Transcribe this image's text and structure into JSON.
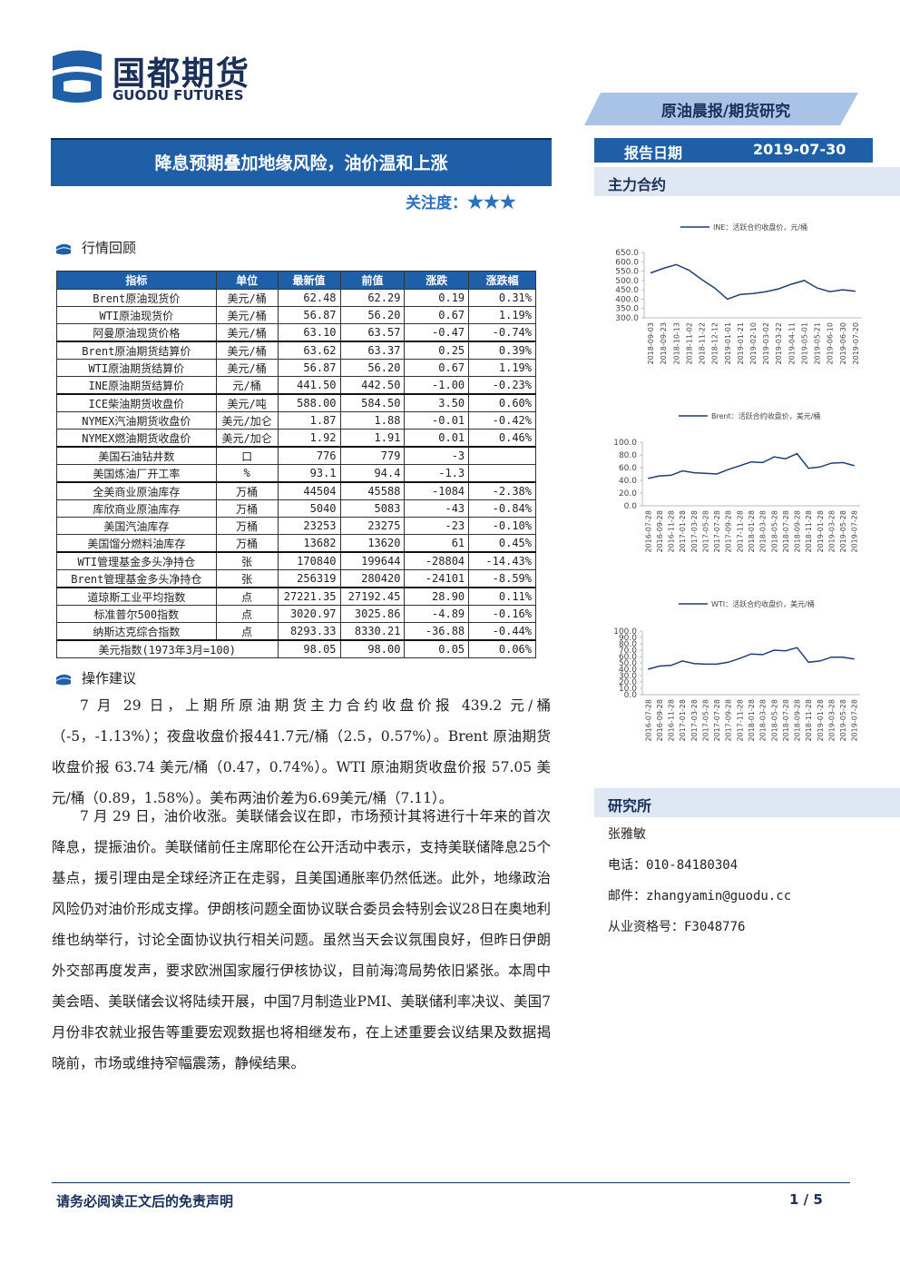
{
  "header": {
    "logo_name": "国都期货",
    "logo_en": "GUODU FUTURES",
    "report_type": "原油晨报/期货研究",
    "date_label": "报告日期",
    "date": "2019-07-30"
  },
  "title": "降息预期叠加地缘风险，油价温和上涨",
  "attention": {
    "label": "关注度：",
    "stars": "★★★"
  },
  "market_review": {
    "heading": "行情回顾"
  },
  "table": {
    "columns": [
      "指标",
      "单位",
      "最新值",
      "前值",
      "涨跌",
      "涨跌幅"
    ],
    "groups": [
      [
        [
          "Brent原油现货价",
          "美元/桶",
          "62.48",
          "62.29",
          "0.19",
          "0.31%"
        ],
        [
          "WTI原油现货价",
          "美元/桶",
          "56.87",
          "56.20",
          "0.67",
          "1.19%"
        ],
        [
          "阿曼原油现货价格",
          "美元/桶",
          "63.10",
          "63.57",
          "-0.47",
          "-0.74%"
        ]
      ],
      [
        [
          "Brent原油期货结算价",
          "美元/桶",
          "63.62",
          "63.37",
          "0.25",
          "0.39%"
        ],
        [
          "WTI原油期货结算价",
          "美元/桶",
          "56.87",
          "56.20",
          "0.67",
          "1.19%"
        ],
        [
          "INE原油期货结算价",
          "元/桶",
          "441.50",
          "442.50",
          "-1.00",
          "-0.23%"
        ]
      ],
      [
        [
          "ICE柴油期货收盘价",
          "美元/吨",
          "588.00",
          "584.50",
          "3.50",
          "0.60%"
        ],
        [
          "NYMEX汽油期货收盘价",
          "美元/加仑",
          "1.87",
          "1.88",
          "-0.01",
          "-0.42%"
        ],
        [
          "NYMEX燃油期货收盘价",
          "美元/加仑",
          "1.92",
          "1.91",
          "0.01",
          "0.46%"
        ]
      ],
      [
        [
          "美国石油钻井数",
          "口",
          "776",
          "779",
          "-3"
        ],
        [
          "美国炼油厂开工率",
          "%",
          "93.1",
          "94.4",
          "-1.3"
        ]
      ],
      [
        [
          "全美商业原油库存",
          "万桶",
          "44504",
          "45588",
          "-1084",
          "-2.38%"
        ],
        [
          "库欣商业原油库存",
          "万桶",
          "5040",
          "5083",
          "-43",
          "-0.84%"
        ],
        [
          "美国汽油库存",
          "万桶",
          "23253",
          "23275",
          "-23",
          "-0.10%"
        ],
        [
          "美国馏分燃料油库存",
          "万桶",
          "13682",
          "13620",
          "61",
          "0.45%"
        ]
      ],
      [
        [
          "WTI管理基金多头净持仓",
          "张",
          "170840",
          "199644",
          "-28804",
          "-14.43%"
        ],
        [
          "Brent管理基金多头净持仓",
          "张",
          "256319",
          "280420",
          "-24101",
          "-8.59%"
        ]
      ],
      [
        [
          "道琼斯工业平均指数",
          "点",
          "27221.35",
          "27192.45",
          "28.90",
          "0.11%"
        ],
        [
          "标准普尔500指数",
          "点",
          "3020.97",
          "3025.86",
          "-4.89",
          "-0.16%"
        ],
        [
          "纳斯达克综合指数",
          "点",
          "8293.33",
          "8330.21",
          "-36.88",
          "-0.44%"
        ]
      ]
    ],
    "footer_row": [
      "美元指数(1973年3月=100)",
      "98.05",
      "98.00",
      "0.05",
      "0.06%"
    ]
  },
  "advice": {
    "heading": "操作建议",
    "paragraphs": [
      "7 月 29 日，上期所原油期货主力合约收盘价报 439.2 元/桶（-5，-1.13%）；夜盘收盘价报441.7元/桶（2.5，0.57%）。Brent 原油期货收盘价报 63.74 美元/桶（0.47，0.74%）。WTI 原油期货收盘价报 57.05 美元/桶（0.89，1.58%）。美布两油价差为6.69美元/桶（7.11）。",
      "7 月 29 日，油价收涨。美联储会议在即，市场预计其将进行十年来的首次降息，提振油价。美联储前任主席耶伦在公开活动中表示，支持美联储降息25个基点，援引理由是全球经济正在走弱，且美国通胀率仍然低迷。此外，地缘政治风险仍对油价形成支撑。伊朗核问题全面协议联合委员会特别会议28日在奥地利维也纳举行，讨论全面协议执行相关问题。虽然当天会议氛围良好，但昨日伊朗外交部再度发声，要求欧洲国家履行伊核协议，目前海湾局势依旧紧张。本周中美会晤、美联储会议将陆续开展，中国7月制造业PMI、美联储利率决议、美国7月份非农就业报告等重要宏观数据也将相继发布，在上述重要会议结果及数据揭晓前，市场或维持窄幅震荡，静候结果。"
    ]
  },
  "main_contract": {
    "heading": "主力合约",
    "charts": [
      {
        "type": "line",
        "name": "INE：活跃合约收盘价，元/桶",
        "color": "#1f3f73",
        "x": [
          "2018-09-03",
          "2018-09-23",
          "2018-10-13",
          "2018-11-02",
          "2018-11-22",
          "2018-12-12",
          "2019-01-01",
          "2019-01-21",
          "2019-02-10",
          "2019-03-02",
          "2019-03-22",
          "2019-04-11",
          "2019-05-01",
          "2019-05-21",
          "2019-06-10",
          "2019-06-30",
          "2019-07-20"
        ],
        "values": [
          540,
          565,
          585,
          555,
          505,
          460,
          400,
          425,
          430,
          440,
          455,
          480,
          500,
          460,
          440,
          450,
          442
        ],
        "ylim": [
          300,
          650
        ],
        "yticks": [
          {
            "value": 300,
            "label": "300.0"
          },
          {
            "value": 350,
            "label": "350.0"
          },
          {
            "value": 400,
            "label": "400.0"
          },
          {
            "value": 450,
            "label": "450.0"
          },
          {
            "value": 500,
            "label": "500.0"
          },
          {
            "value": 550,
            "label": "550.0"
          },
          {
            "value": 600,
            "label": "600.0"
          },
          {
            "value": 650,
            "label": "650.0"
          }
        ]
      },
      {
        "type": "line",
        "name": "Brent：活跃合约收盘价，美元/桶",
        "color": "#1f3f73",
        "x": [
          "2016-07-28",
          "2016-09-28",
          "2016-11-28",
          "2017-01-28",
          "2017-03-28",
          "2017-05-28",
          "2017-07-28",
          "2017-09-28",
          "2017-11-28",
          "2018-01-28",
          "2018-03-28",
          "2018-05-28",
          "2018-07-28",
          "2018-09-28",
          "2018-11-28",
          "2019-01-28",
          "2019-03-28",
          "2019-05-28",
          "2019-07-28"
        ],
        "values": [
          43,
          47,
          48,
          55,
          52,
          51,
          50,
          57,
          63,
          69,
          68,
          77,
          74,
          82,
          59,
          61,
          67,
          68,
          63
        ],
        "ylim": [
          0,
          100
        ],
        "yticks": [
          {
            "value": 0,
            "label": "0.0"
          },
          {
            "value": 20,
            "label": "20.0"
          },
          {
            "value": 40,
            "label": "40.0"
          },
          {
            "value": 60,
            "label": "60.0"
          },
          {
            "value": 80,
            "label": "80.0"
          },
          {
            "value": 100,
            "label": "100.0"
          }
        ]
      },
      {
        "type": "line",
        "name": "WTI：活跃合约收盘价，美元/桶",
        "color": "#1f3f73",
        "x": [
          "2016-07-28",
          "2016-09-28",
          "2016-11-28",
          "2017-01-28",
          "2017-03-28",
          "2017-05-28",
          "2017-07-28",
          "2017-09-28",
          "2017-11-28",
          "2018-01-28",
          "2018-03-28",
          "2018-05-28",
          "2018-07-28",
          "2018-09-28",
          "2018-11-28",
          "2019-01-28",
          "2019-03-28",
          "2019-05-28",
          "2019-07-28"
        ],
        "values": [
          40,
          45,
          46,
          53,
          49,
          48,
          48,
          51,
          57,
          64,
          63,
          70,
          69,
          74,
          51,
          53,
          59,
          59,
          56
        ],
        "ylim": [
          0,
          100
        ],
        "yticks": [
          {
            "value": 0,
            "label": "0.0"
          },
          {
            "value": 10,
            "label": "10.0"
          },
          {
            "value": 20,
            "label": "20.0"
          },
          {
            "value": 30,
            "label": "30.0"
          },
          {
            "value": 40,
            "label": "40.0"
          },
          {
            "value": 50,
            "label": "50.0"
          },
          {
            "value": 60,
            "label": "60.0"
          },
          {
            "value": 70,
            "label": "70.0"
          },
          {
            "value": 80,
            "label": "80.0"
          },
          {
            "value": 90,
            "label": "90.0"
          },
          {
            "value": 100,
            "label": "100.0"
          }
        ]
      }
    ]
  },
  "research": {
    "heading": "研究所",
    "name": "张雅敏",
    "phone": "电话：010-84180304",
    "email": "邮件：zhangyamin@guodu.cc",
    "license": "从业资格号：F3048776"
  },
  "footer": {
    "disclaimer": "请务必阅读正文后的免责声明",
    "page": "1 / 5"
  }
}
